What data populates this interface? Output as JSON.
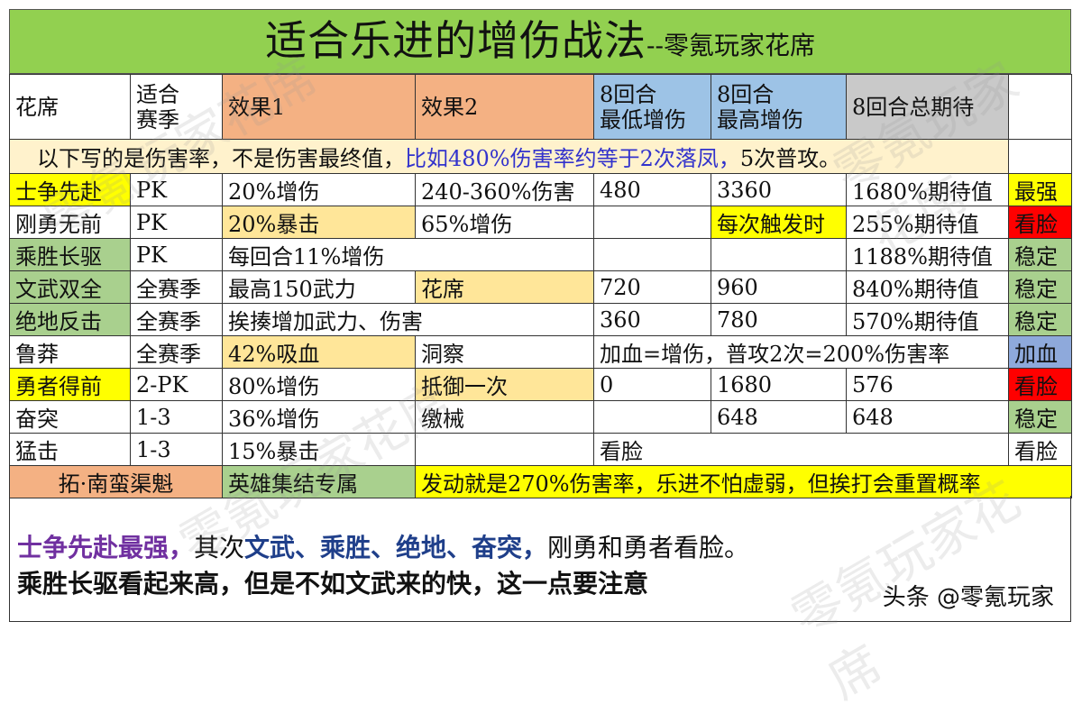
{
  "title": {
    "main": "适合乐进的增伤战法",
    "suffix": "--零氪玩家花席"
  },
  "header": [
    "花席",
    "适合\n赛季",
    "效果1",
    "效果2",
    "8回合\n最低增伤",
    "8回合\n最高增伤",
    "8回合总期待",
    ""
  ],
  "note": {
    "black": "以下写的是伤害率，不是伤害最终值，",
    "blue": "比如480%伤害率约等于2次落凤，",
    "tail": "5次普攻。"
  },
  "rows": [
    [
      "士争先赴",
      "PK",
      "20%增伤",
      "240-360%伤害",
      "480",
      "3360",
      "1680%期待值",
      "最强"
    ],
    [
      "刚勇无前",
      "PK",
      "20%暴击",
      "65%增伤",
      "",
      "每次触发时",
      "255%期待值",
      "看脸"
    ],
    [
      "乘胜长驱",
      "PK",
      "每回合11%增伤",
      "",
      "",
      "",
      "1188%期待值",
      "稳定"
    ],
    [
      "文武双全",
      "全赛季",
      "最高150武力",
      "花席",
      "720",
      "960",
      "840%期待值",
      "稳定"
    ],
    [
      "绝地反击",
      "全赛季",
      "挨揍增加武力、伤害",
      "",
      "360",
      "780",
      "570%期待值",
      "稳定"
    ],
    [
      "鲁莽",
      "全赛季",
      "42%吸血",
      "洞察",
      "加血=增伤，普攻2次=200%伤害率",
      "",
      "",
      "加血"
    ],
    [
      "勇者得前",
      "2-PK",
      "80%增伤",
      "抵御一次",
      "0",
      "1680",
      "576",
      "看脸"
    ],
    [
      "奋突",
      "1-3",
      "36%增伤",
      "缴械",
      "",
      "648",
      "648",
      "稳定"
    ],
    [
      "猛击",
      "1-3",
      "15%暴击",
      "",
      "看脸",
      "",
      "",
      "看脸"
    ]
  ],
  "special": {
    "name": "拓·南蛮渠魁",
    "season": "英雄集结专属",
    "desc": "发动就是270%伤害率，乐进不怕虚弱，但挨打会重置概率"
  },
  "summary": {
    "best": "士争先赴最强，",
    "mid1": "其次",
    "list": "文武、乘胜、绝地、奋突，",
    "tail": "刚勇和勇者看脸。",
    "line2": "乘胜长驱看起来高，但是不如文武来的快，这一点要注意"
  },
  "credit": "头条 @零氪玩家",
  "watermark": "零氪玩家花席"
}
